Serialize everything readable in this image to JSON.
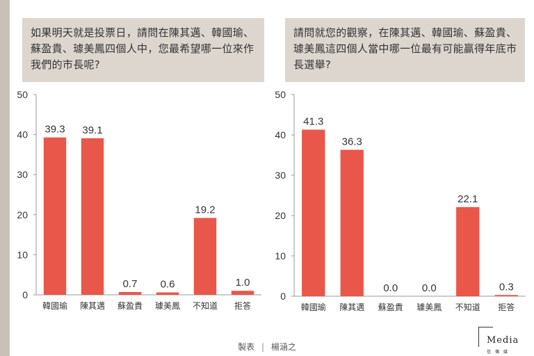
{
  "questions": {
    "left": "如果明天就是投票日，請問在陳其邁、韓國瑜、蘇盈貴、璩美鳳四個人中，您最希望哪一位來作我們的市長呢?",
    "right": "請問就您的觀察，在陳其邁、韓國瑜、蘇盈貴、璩美鳳這四個人當中哪一位最有可能贏得年底市長選舉?"
  },
  "footer": {
    "made_by": "製表",
    "separator": "|",
    "author": "楊涵之"
  },
  "logo": {
    "word": "Media",
    "sub": "信傳媒"
  },
  "colors": {
    "bar": "#e8574a",
    "axis": "#9a9a9a",
    "text": "#333333"
  },
  "chart_data": [
    {
      "type": "bar",
      "categories": [
        "韓國瑜",
        "陳其邁",
        "蘇盈貴",
        "璩美鳳",
        "不知道",
        "拒答"
      ],
      "values": [
        39.3,
        39.1,
        0.7,
        0.6,
        19.2,
        1.0
      ],
      "value_labels": [
        "39.3",
        "39.1",
        "0.7",
        "0.6",
        "19.2",
        "1.0"
      ],
      "yticks": [
        "0",
        "10",
        "20",
        "30",
        "40",
        "50"
      ],
      "ylim": [
        0,
        50
      ],
      "grid": false
    },
    {
      "type": "bar",
      "categories": [
        "韓國瑜",
        "陳其邁",
        "蘇盈貴",
        "璩美鳳",
        "不知道",
        "拒答"
      ],
      "values": [
        41.3,
        36.3,
        0.0,
        0.0,
        22.1,
        0.3
      ],
      "value_labels": [
        "41.3",
        "36.3",
        "0.0",
        "0.0",
        "22.1",
        "0.3"
      ],
      "yticks": [
        "0",
        "10",
        "20",
        "30",
        "40",
        "50"
      ],
      "ylim": [
        0,
        50
      ],
      "grid": false
    }
  ]
}
